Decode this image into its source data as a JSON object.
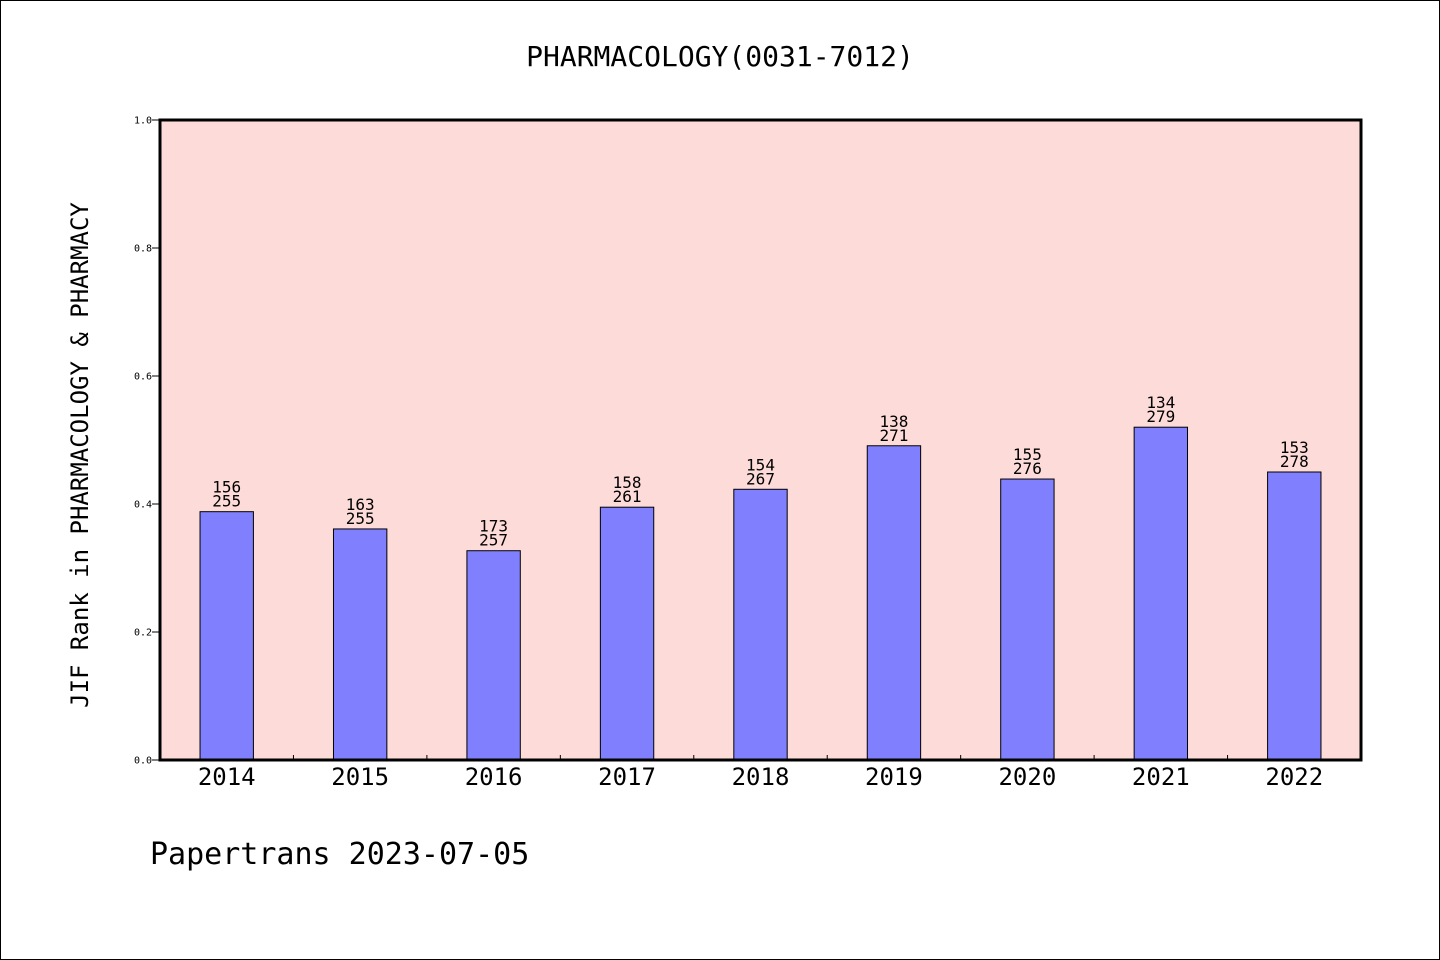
{
  "chart_data": {
    "type": "bar",
    "title": "PHARMACOLOGY(0031-7012)",
    "xlabel": "",
    "ylabel": "JIF Rank in PHARMACOLOGY & PHARMACY",
    "ylim": [
      0,
      1.0
    ],
    "yticks": [
      "0.0",
      "0.2",
      "0.4",
      "0.6",
      "0.8",
      "1.0"
    ],
    "categories": [
      "2014",
      "2015",
      "2016",
      "2017",
      "2018",
      "2019",
      "2020",
      "2021",
      "2022"
    ],
    "values": [
      0.388,
      0.361,
      0.327,
      0.395,
      0.423,
      0.491,
      0.439,
      0.52,
      0.45
    ],
    "ranks": [
      "156",
      "163",
      "173",
      "158",
      "154",
      "138",
      "155",
      "134",
      "153"
    ],
    "totals": [
      "255",
      "255",
      "257",
      "261",
      "267",
      "271",
      "276",
      "279",
      "278"
    ],
    "grid": false,
    "legend": "none",
    "colors": {
      "plot_background": "#fddbd8",
      "bar_fill": "#8080ff",
      "bar_stroke": "#000000",
      "axis": "#000000"
    }
  },
  "footer": "Papertrans 2023-07-05"
}
